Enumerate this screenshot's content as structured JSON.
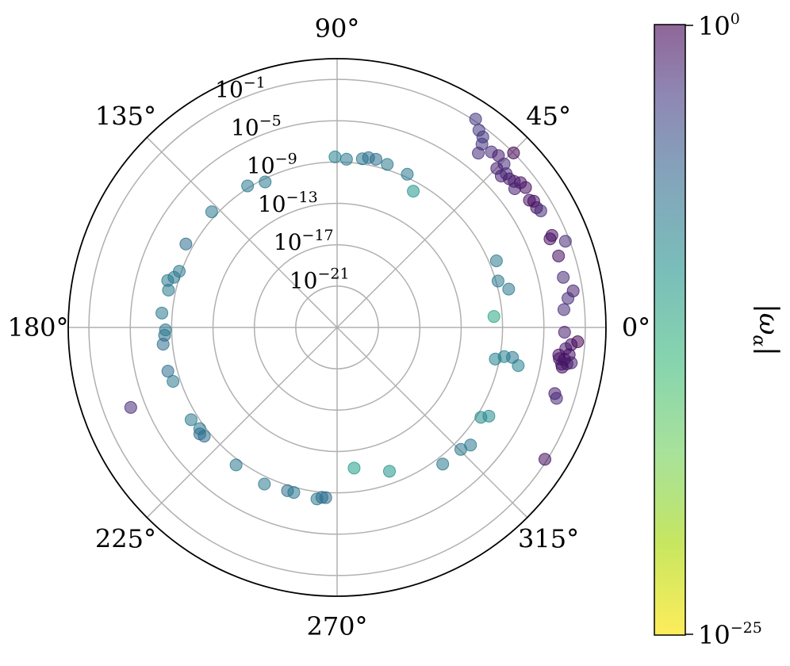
{
  "chart_data": {
    "type": "scatter",
    "projection": "polar",
    "title": "",
    "angle_ticks": [
      "0°",
      "45°",
      "90°",
      "135°",
      "180°",
      "225°",
      "270°",
      "315°"
    ],
    "angle_tick_values": [
      0,
      45,
      90,
      135,
      180,
      225,
      270,
      315
    ],
    "radial_scale": "log10",
    "radial_range_exponent": [
      -25,
      1
    ],
    "radial_ticks": [
      {
        "base": "10",
        "exp": "−21",
        "value_exp": -21
      },
      {
        "base": "10",
        "exp": "−17",
        "value_exp": -17
      },
      {
        "base": "10",
        "exp": "−13",
        "value_exp": -13
      },
      {
        "base": "10",
        "exp": "−9",
        "value_exp": -9
      },
      {
        "base": "10",
        "exp": "−5",
        "value_exp": -5
      },
      {
        "base": "10",
        "exp": "−1",
        "value_exp": -1
      }
    ],
    "colorbar": {
      "label": "|ω_α|",
      "label_main": "|ω",
      "label_sub": "α",
      "label_end": "|",
      "scale": "log10",
      "min_label": {
        "base": "10",
        "exp": "−25"
      },
      "max_label": {
        "base": "10",
        "exp": "0"
      },
      "range_exponent": [
        -25,
        0
      ],
      "colormap_reversed_viridis": [
        "#fde725",
        "#b5de2b",
        "#6ece58",
        "#35b779",
        "#1f9e89",
        "#26828e",
        "#31688e",
        "#3e4989",
        "#482878",
        "#440154"
      ]
    },
    "grid": true,
    "marker_opacity": 0.55,
    "points": [
      {
        "theta": 56.4,
        "r": -0.8,
        "c": -4
      },
      {
        "theta": 54.3,
        "r": -1.5,
        "c": -4
      },
      {
        "theta": 52.6,
        "r": -1.8,
        "c": -4
      },
      {
        "theta": 51.7,
        "r": -2.4,
        "c": -4
      },
      {
        "theta": 51.0,
        "r": -3.3,
        "c": -3
      },
      {
        "theta": 48.7,
        "r": -2.4,
        "c": -3
      },
      {
        "theta": 46.8,
        "r": -2.2,
        "c": -2
      },
      {
        "theta": 44.4,
        "r": -2.4,
        "c": -3
      },
      {
        "theta": 44.7,
        "r": -1.0,
        "c": 0
      },
      {
        "theta": 44.9,
        "r": -3.2,
        "c": -2
      },
      {
        "theta": 42.7,
        "r": -3.4,
        "c": -2
      },
      {
        "theta": 42.3,
        "r": -2.9,
        "c": -3
      },
      {
        "theta": 40.8,
        "r": -3.0,
        "c": -2
      },
      {
        "theta": 39.5,
        "r": -2.8,
        "c": -2
      },
      {
        "theta": 38.3,
        "r": -2.4,
        "c": -1
      },
      {
        "theta": 36.6,
        "r": -2.3,
        "c": -1
      },
      {
        "theta": 38.0,
        "r": -3.2,
        "c": -2
      },
      {
        "theta": 33.5,
        "r": -2.7,
        "c": -1
      },
      {
        "theta": 32.7,
        "r": -2.4,
        "c": -1
      },
      {
        "theta": 31.0,
        "r": -2.5,
        "c": -1
      },
      {
        "theta": 29.8,
        "r": -2.3,
        "c": -3
      },
      {
        "theta": 23.2,
        "r": -2.4,
        "c": -1
      },
      {
        "theta": 22.6,
        "r": -2.7,
        "c": -1
      },
      {
        "theta": 20.7,
        "r": -1.4,
        "c": -3
      },
      {
        "theta": 17.9,
        "r": -2.5,
        "c": -1
      },
      {
        "theta": 12.5,
        "r": -2.6,
        "c": -3
      },
      {
        "theta": 8.8,
        "r": -1.9,
        "c": -2
      },
      {
        "theta": 7.2,
        "r": -2.5,
        "c": -3
      },
      {
        "theta": 4.5,
        "r": -3.0,
        "c": -3
      },
      {
        "theta": -1.2,
        "r": -3.0,
        "c": -2
      },
      {
        "theta": -3.4,
        "r": -1.7,
        "c": 0
      },
      {
        "theta": -4.2,
        "r": -2.3,
        "c": -1
      },
      {
        "theta": -5.3,
        "r": -2.8,
        "c": -2
      },
      {
        "theta": -6.7,
        "r": -2.4,
        "c": -1
      },
      {
        "theta": -7.1,
        "r": -3.4,
        "c": -1
      },
      {
        "theta": -8.0,
        "r": -3.3,
        "c": -1
      },
      {
        "theta": -8.6,
        "r": -2.1,
        "c": -2
      },
      {
        "theta": -8.0,
        "r": -2.8,
        "c": -1
      },
      {
        "theta": -9.3,
        "r": -3.0,
        "c": -2
      },
      {
        "theta": -9.0,
        "r": -2.5,
        "c": -2
      },
      {
        "theta": -10.0,
        "r": -2.9,
        "c": -1
      },
      {
        "theta": -16.9,
        "r": -3.0,
        "c": -2
      },
      {
        "theta": -17.9,
        "r": -2.7,
        "c": -3
      },
      {
        "theta": -32.4,
        "r": -1.2,
        "c": -1
      },
      {
        "theta": 86.8,
        "r": -8.7,
        "c": -10
      },
      {
        "theta": 90.7,
        "r": -8.5,
        "c": -11
      },
      {
        "theta": 81.5,
        "r": -8.5,
        "c": -10
      },
      {
        "theta": 79.5,
        "r": -8.3,
        "c": -9
      },
      {
        "theta": 77.0,
        "r": -8.3,
        "c": -9
      },
      {
        "theta": 72.9,
        "r": -8.5,
        "c": -10
      },
      {
        "theta": 65.4,
        "r": -8.7,
        "c": -10
      },
      {
        "theta": 60.8,
        "r": -9.9,
        "c": -13
      },
      {
        "theta": 122.3,
        "r": -8.8,
        "c": -10
      },
      {
        "theta": 116.3,
        "r": -9.3,
        "c": -10
      },
      {
        "theta": 137.3,
        "r": -8.5,
        "c": -10
      },
      {
        "theta": 151.1,
        "r": -8.3,
        "c": -9
      },
      {
        "theta": 160.4,
        "r": -8.8,
        "c": -10
      },
      {
        "theta": 164.5,
        "r": -8.0,
        "c": -10
      },
      {
        "theta": 162.9,
        "r": -8.5,
        "c": -10
      },
      {
        "theta": 167.5,
        "r": -8.3,
        "c": -10
      },
      {
        "theta": 175.3,
        "r": -8.0,
        "c": -10
      },
      {
        "theta": 185.5,
        "r": -8.1,
        "c": -9
      },
      {
        "theta": 182.6,
        "r": -8.3,
        "c": -9
      },
      {
        "theta": 180.8,
        "r": -8.4,
        "c": -10
      },
      {
        "theta": 194.5,
        "r": -8.1,
        "c": -9
      },
      {
        "theta": 198.2,
        "r": -8.3,
        "c": -10
      },
      {
        "theta": 212.3,
        "r": -8.3,
        "c": -10
      },
      {
        "theta": 216.4,
        "r": -8.5,
        "c": -10
      },
      {
        "theta": 217.8,
        "r": -8.2,
        "c": -9
      },
      {
        "theta": 219.3,
        "r": -8.4,
        "c": -9
      },
      {
        "theta": 201.2,
        "r": -3.6,
        "c": -3
      },
      {
        "theta": 233.7,
        "r": -8.5,
        "c": -10
      },
      {
        "theta": 245.1,
        "r": -8.3,
        "c": -10
      },
      {
        "theta": 253.1,
        "r": -8.5,
        "c": -9
      },
      {
        "theta": 255.3,
        "r": -8.5,
        "c": -10
      },
      {
        "theta": 263.3,
        "r": -8.3,
        "c": -10
      },
      {
        "theta": 264.9,
        "r": -8.5,
        "c": -9
      },
      {
        "theta": 266.2,
        "r": -8.5,
        "c": -9
      },
      {
        "theta": 276.9,
        "r": -11.3,
        "c": -14
      },
      {
        "theta": 290.0,
        "r": -10.2,
        "c": -13
      },
      {
        "theta": 307.7,
        "r": -8.3,
        "c": -10
      },
      {
        "theta": 315.4,
        "r": -8.2,
        "c": -10
      },
      {
        "theta": 318.6,
        "r": -7.8,
        "c": -10
      },
      {
        "theta": 328.0,
        "r": -8.6,
        "c": -12
      },
      {
        "theta": 329.7,
        "r": -8.0,
        "c": -12
      },
      {
        "theta": 348.7,
        "r": -9.4,
        "c": -11
      },
      {
        "theta": 350.1,
        "r": -8.6,
        "c": -11
      },
      {
        "theta": 350.3,
        "r": -7.8,
        "c": -10
      },
      {
        "theta": 348.1,
        "r": -7.1,
        "c": -11
      },
      {
        "theta": 4.0,
        "r": -9.8,
        "c": -15
      },
      {
        "theta": 16.1,
        "r": -8.8,
        "c": -10
      },
      {
        "theta": 12.6,
        "r": -8.0,
        "c": -10
      },
      {
        "theta": 22.7,
        "r": -8.3,
        "c": -10
      }
    ]
  }
}
